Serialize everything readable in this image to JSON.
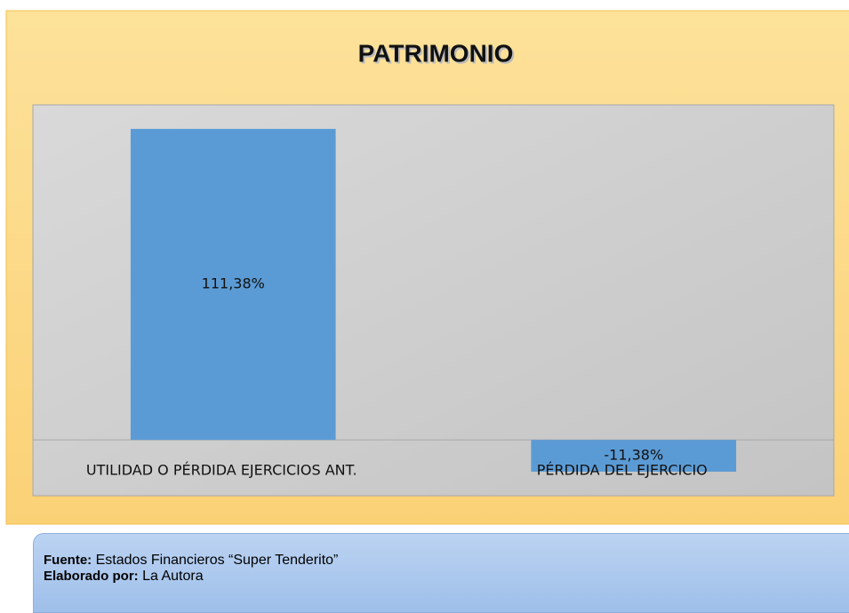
{
  "chart_data": {
    "type": "bar",
    "title": "PATRIMONIO",
    "categories": [
      "UTILIDAD O PÉRDIDA EJERCICIOS ANT.",
      "PÉRDIDA DEL EJERCICIO"
    ],
    "values": [
      111.38,
      -11.38
    ],
    "value_labels": [
      "111,38%",
      "-11,38%"
    ],
    "color": "#5b9bd5",
    "ylim": [
      -20,
      120
    ]
  },
  "footer": {
    "source_label": "Fuente:",
    "source": "Estados Financieros “Super Tenderito”",
    "author_label": "Elaborado por:",
    "author": "La Autora"
  }
}
